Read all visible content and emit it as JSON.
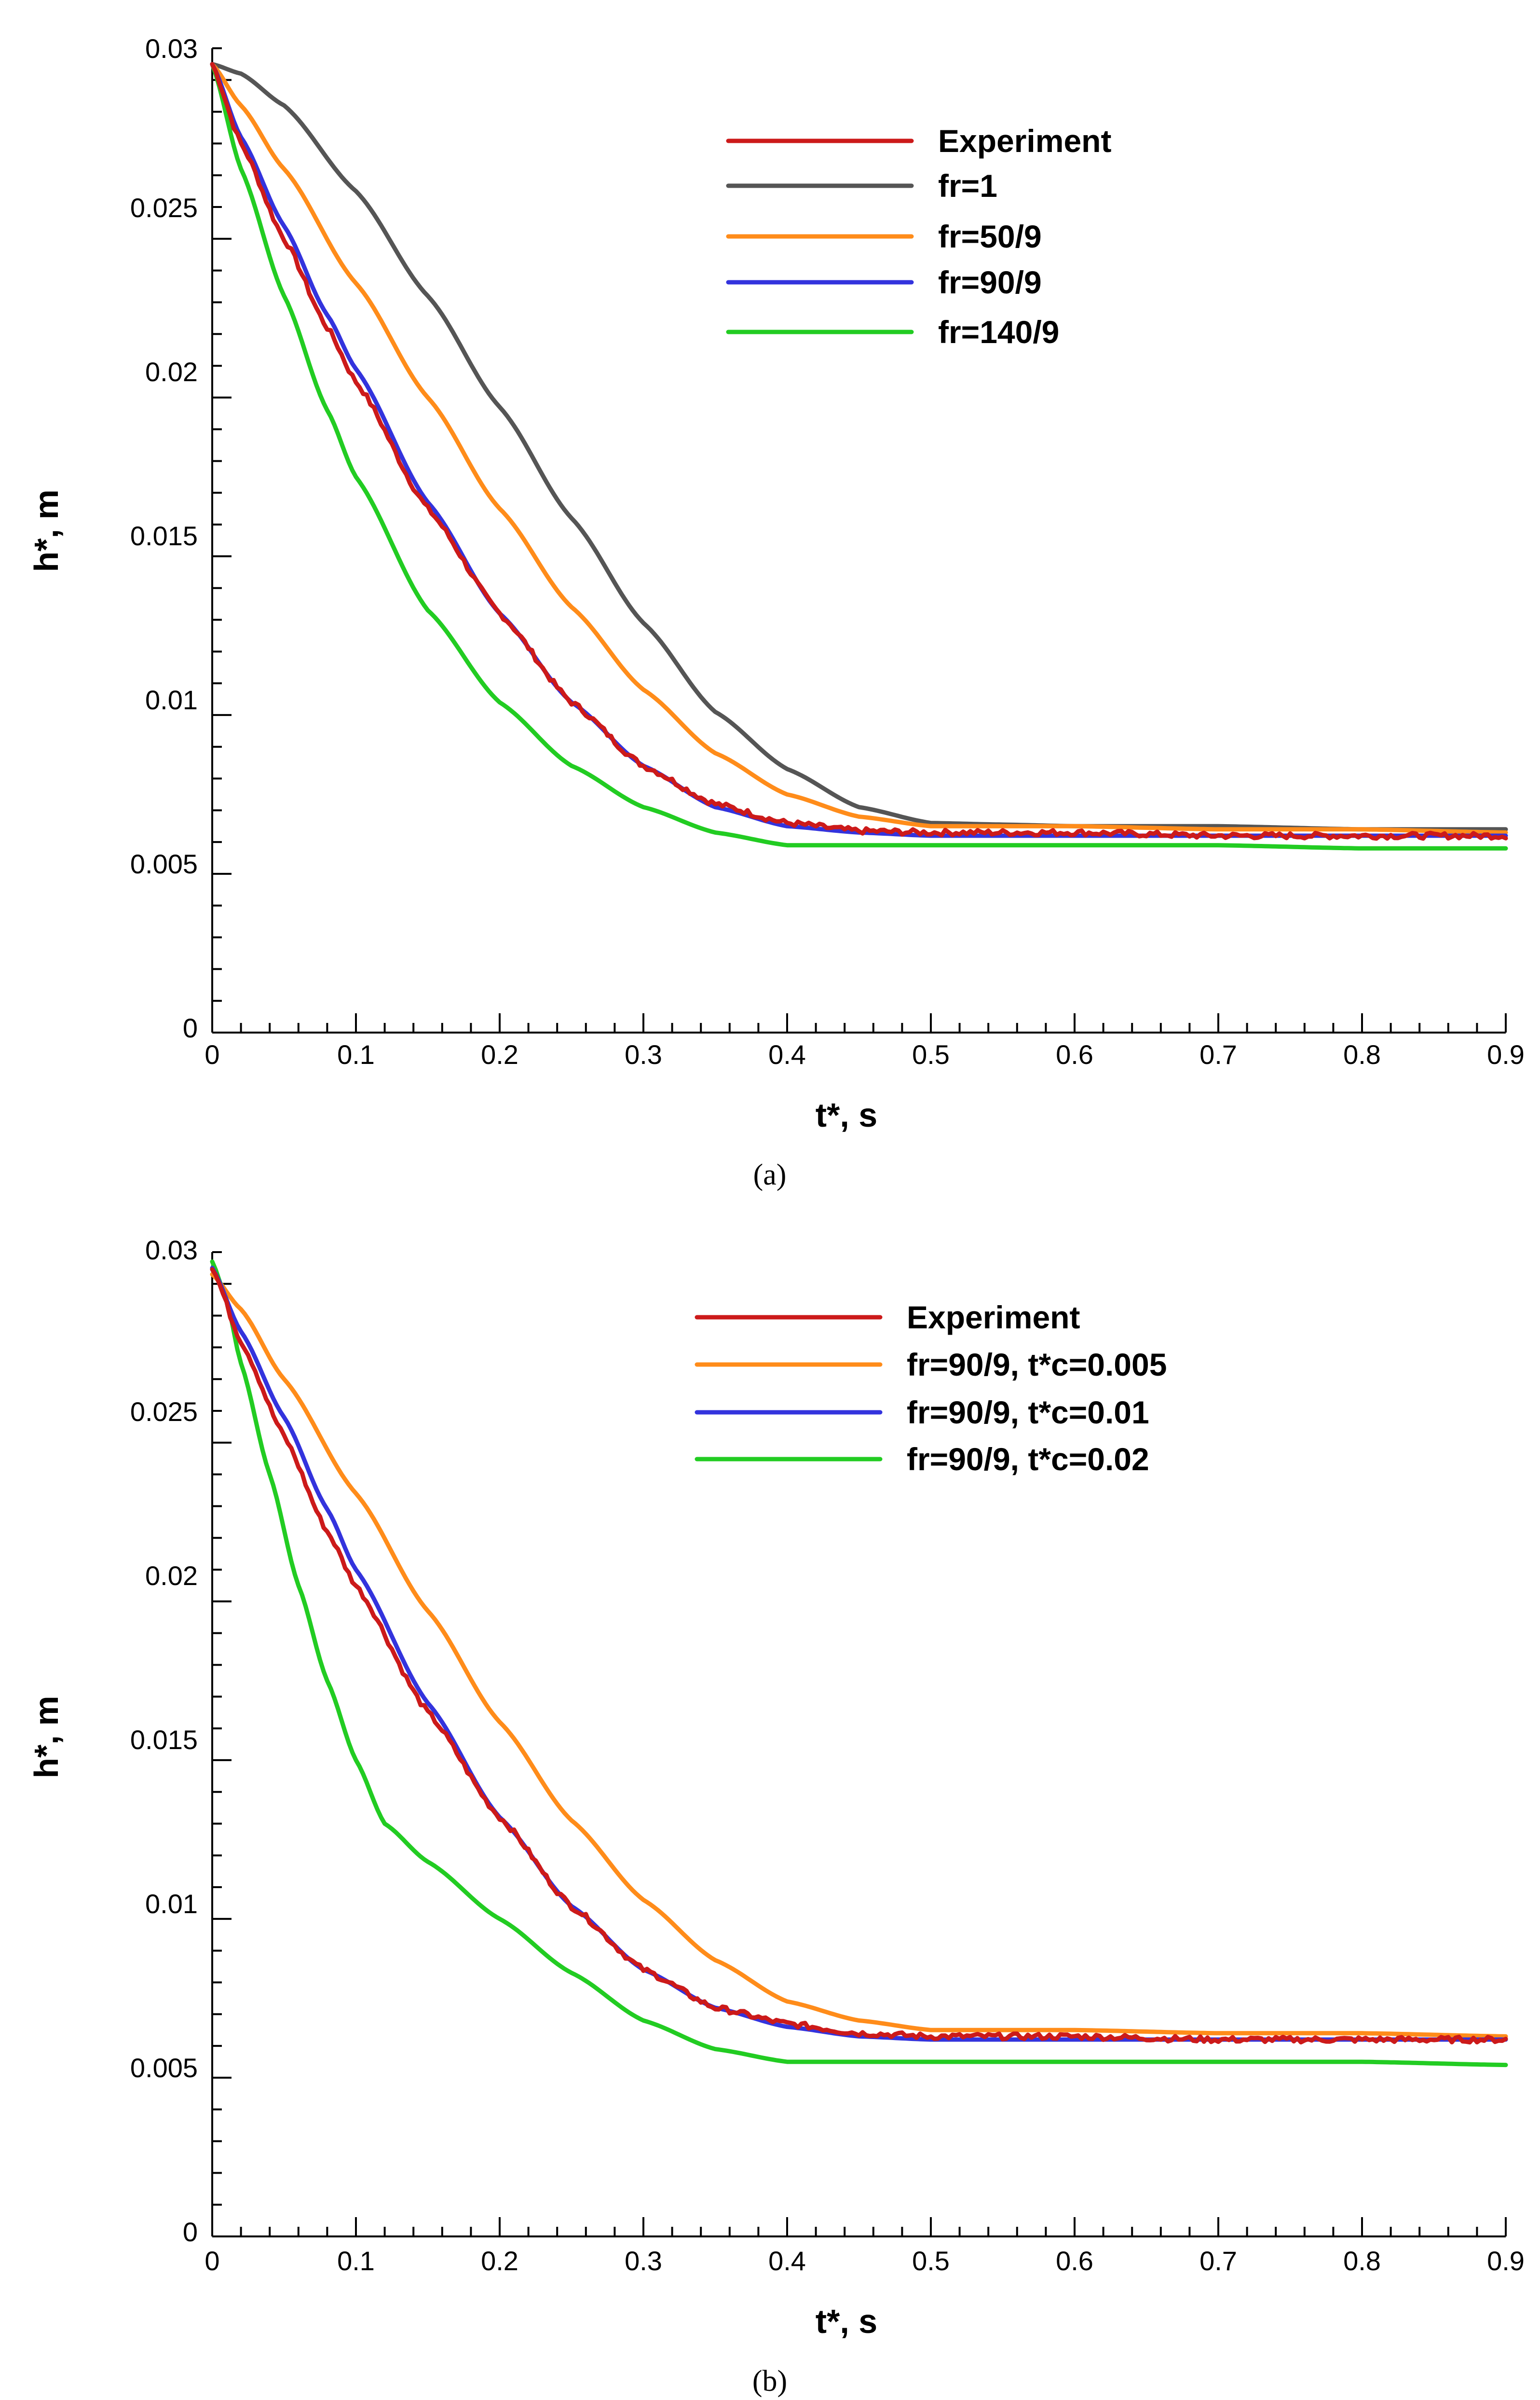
{
  "chart_data": [
    {
      "type": "line",
      "panel": "a",
      "caption": "(a)",
      "xlabel": "t*, s",
      "ylabel": "h*, m",
      "xlim": [
        0,
        0.9
      ],
      "ylim": [
        0,
        0.031
      ],
      "xticks": [
        "0",
        "0.1",
        "0.2",
        "0.3",
        "0.4",
        "0.5",
        "0.6",
        "0.7",
        "0.8",
        "0.9"
      ],
      "yticks": [
        "0",
        "0.005",
        "0.01",
        "0.015",
        "0.02",
        "0.025",
        "0.03"
      ],
      "legend_position": "top-right",
      "series": [
        {
          "name": "Experiment",
          "color": "#cc1a1a",
          "noisy": true,
          "x": [
            0,
            0.02,
            0.05,
            0.08,
            0.1,
            0.15,
            0.2,
            0.25,
            0.3,
            0.35,
            0.4,
            0.45,
            0.5,
            0.6,
            0.7,
            0.8,
            0.9
          ],
          "y": [
            0.0305,
            0.028,
            0.025,
            0.0222,
            0.0205,
            0.0165,
            0.0132,
            0.0104,
            0.0084,
            0.0072,
            0.0066,
            0.00635,
            0.0063,
            0.0063,
            0.0062,
            0.0062,
            0.0062
          ]
        },
        {
          "name": "fr=1",
          "color": "#555555",
          "x": [
            0,
            0.02,
            0.05,
            0.1,
            0.15,
            0.2,
            0.25,
            0.3,
            0.35,
            0.4,
            0.45,
            0.5,
            0.55,
            0.6,
            0.7,
            0.8,
            0.9
          ],
          "y": [
            0.0305,
            0.0302,
            0.0292,
            0.0265,
            0.0232,
            0.0197,
            0.0162,
            0.0129,
            0.0101,
            0.0083,
            0.0071,
            0.0066,
            0.00655,
            0.0065,
            0.0065,
            0.0064,
            0.0064
          ]
        },
        {
          "name": "fr=50/9",
          "color": "#ff8c1a",
          "x": [
            0,
            0.02,
            0.05,
            0.1,
            0.15,
            0.2,
            0.25,
            0.3,
            0.35,
            0.4,
            0.45,
            0.5,
            0.6,
            0.7,
            0.8,
            0.9
          ],
          "y": [
            0.0305,
            0.0292,
            0.0272,
            0.0236,
            0.02,
            0.0165,
            0.0134,
            0.0108,
            0.0088,
            0.0075,
            0.0068,
            0.0065,
            0.0065,
            0.0064,
            0.0064,
            0.0063
          ]
        },
        {
          "name": "fr=90/9",
          "color": "#3333dd",
          "x": [
            0,
            0.02,
            0.05,
            0.08,
            0.1,
            0.15,
            0.2,
            0.25,
            0.3,
            0.35,
            0.4,
            0.45,
            0.5,
            0.6,
            0.7,
            0.8,
            0.9
          ],
          "y": [
            0.0305,
            0.0282,
            0.0254,
            0.0226,
            0.0209,
            0.0167,
            0.0132,
            0.0104,
            0.0084,
            0.0071,
            0.0065,
            0.0063,
            0.0062,
            0.0062,
            0.0062,
            0.0062,
            0.0062
          ]
        },
        {
          "name": "fr=140/9",
          "color": "#22cc22",
          "x": [
            0,
            0.02,
            0.05,
            0.08,
            0.1,
            0.15,
            0.2,
            0.25,
            0.3,
            0.35,
            0.4,
            0.45,
            0.5,
            0.6,
            0.7,
            0.8,
            0.9
          ],
          "y": [
            0.0305,
            0.0272,
            0.0232,
            0.0196,
            0.0175,
            0.0133,
            0.0104,
            0.0084,
            0.0071,
            0.0063,
            0.0059,
            0.0059,
            0.0059,
            0.0059,
            0.0059,
            0.0058,
            0.0058
          ]
        }
      ]
    },
    {
      "type": "line",
      "panel": "b",
      "caption": "(b)",
      "xlabel": "t*, s",
      "ylabel": "h*, m",
      "xlim": [
        0,
        0.9
      ],
      "ylim": [
        0,
        0.031
      ],
      "xticks": [
        "0",
        "0.1",
        "0.2",
        "0.3",
        "0.4",
        "0.5",
        "0.6",
        "0.7",
        "0.8",
        "0.9"
      ],
      "yticks": [
        "0",
        "0.005",
        "0.01",
        "0.015",
        "0.02",
        "0.025",
        "0.03"
      ],
      "legend_position": "top-right",
      "series": [
        {
          "name": "Experiment",
          "color": "#cc1a1a",
          "noisy": true,
          "x": [
            0,
            0.02,
            0.05,
            0.08,
            0.1,
            0.15,
            0.2,
            0.25,
            0.3,
            0.35,
            0.4,
            0.45,
            0.5,
            0.6,
            0.7,
            0.8,
            0.9
          ],
          "y": [
            0.0305,
            0.0282,
            0.0252,
            0.0222,
            0.0205,
            0.0165,
            0.0132,
            0.0104,
            0.0084,
            0.0072,
            0.0067,
            0.0064,
            0.0063,
            0.0063,
            0.0062,
            0.0062,
            0.0062
          ]
        },
        {
          "name": "fr=90/9, t*c=0.005",
          "color": "#ff8c1a",
          "x": [
            0,
            0.02,
            0.05,
            0.1,
            0.15,
            0.2,
            0.25,
            0.3,
            0.35,
            0.4,
            0.45,
            0.5,
            0.6,
            0.7,
            0.8,
            0.9
          ],
          "y": [
            0.0303,
            0.0292,
            0.027,
            0.0234,
            0.0197,
            0.0162,
            0.0131,
            0.0106,
            0.0087,
            0.0074,
            0.0068,
            0.0065,
            0.0065,
            0.0064,
            0.0064,
            0.0063
          ]
        },
        {
          "name": "fr=90/9, t*c=0.01",
          "color": "#3333dd",
          "x": [
            0,
            0.02,
            0.05,
            0.08,
            0.1,
            0.15,
            0.2,
            0.25,
            0.3,
            0.35,
            0.4,
            0.45,
            0.5,
            0.6,
            0.7,
            0.8,
            0.9
          ],
          "y": [
            0.0305,
            0.0285,
            0.0258,
            0.0229,
            0.021,
            0.0168,
            0.0132,
            0.0104,
            0.0084,
            0.0072,
            0.0066,
            0.0063,
            0.0062,
            0.0062,
            0.0062,
            0.0062,
            0.0062
          ]
        },
        {
          "name": "fr=90/9, t*c=0.02",
          "color": "#22cc22",
          "x": [
            0,
            0.01,
            0.02,
            0.04,
            0.06,
            0.08,
            0.1,
            0.12,
            0.15,
            0.2,
            0.25,
            0.3,
            0.35,
            0.4,
            0.45,
            0.5,
            0.6,
            0.7,
            0.8,
            0.9
          ],
          "y": [
            0.0307,
            0.0295,
            0.0275,
            0.024,
            0.0205,
            0.0175,
            0.015,
            0.013,
            0.0118,
            0.01,
            0.0083,
            0.0068,
            0.0059,
            0.0055,
            0.0055,
            0.0055,
            0.0055,
            0.0055,
            0.0055,
            0.0054
          ]
        }
      ]
    }
  ]
}
